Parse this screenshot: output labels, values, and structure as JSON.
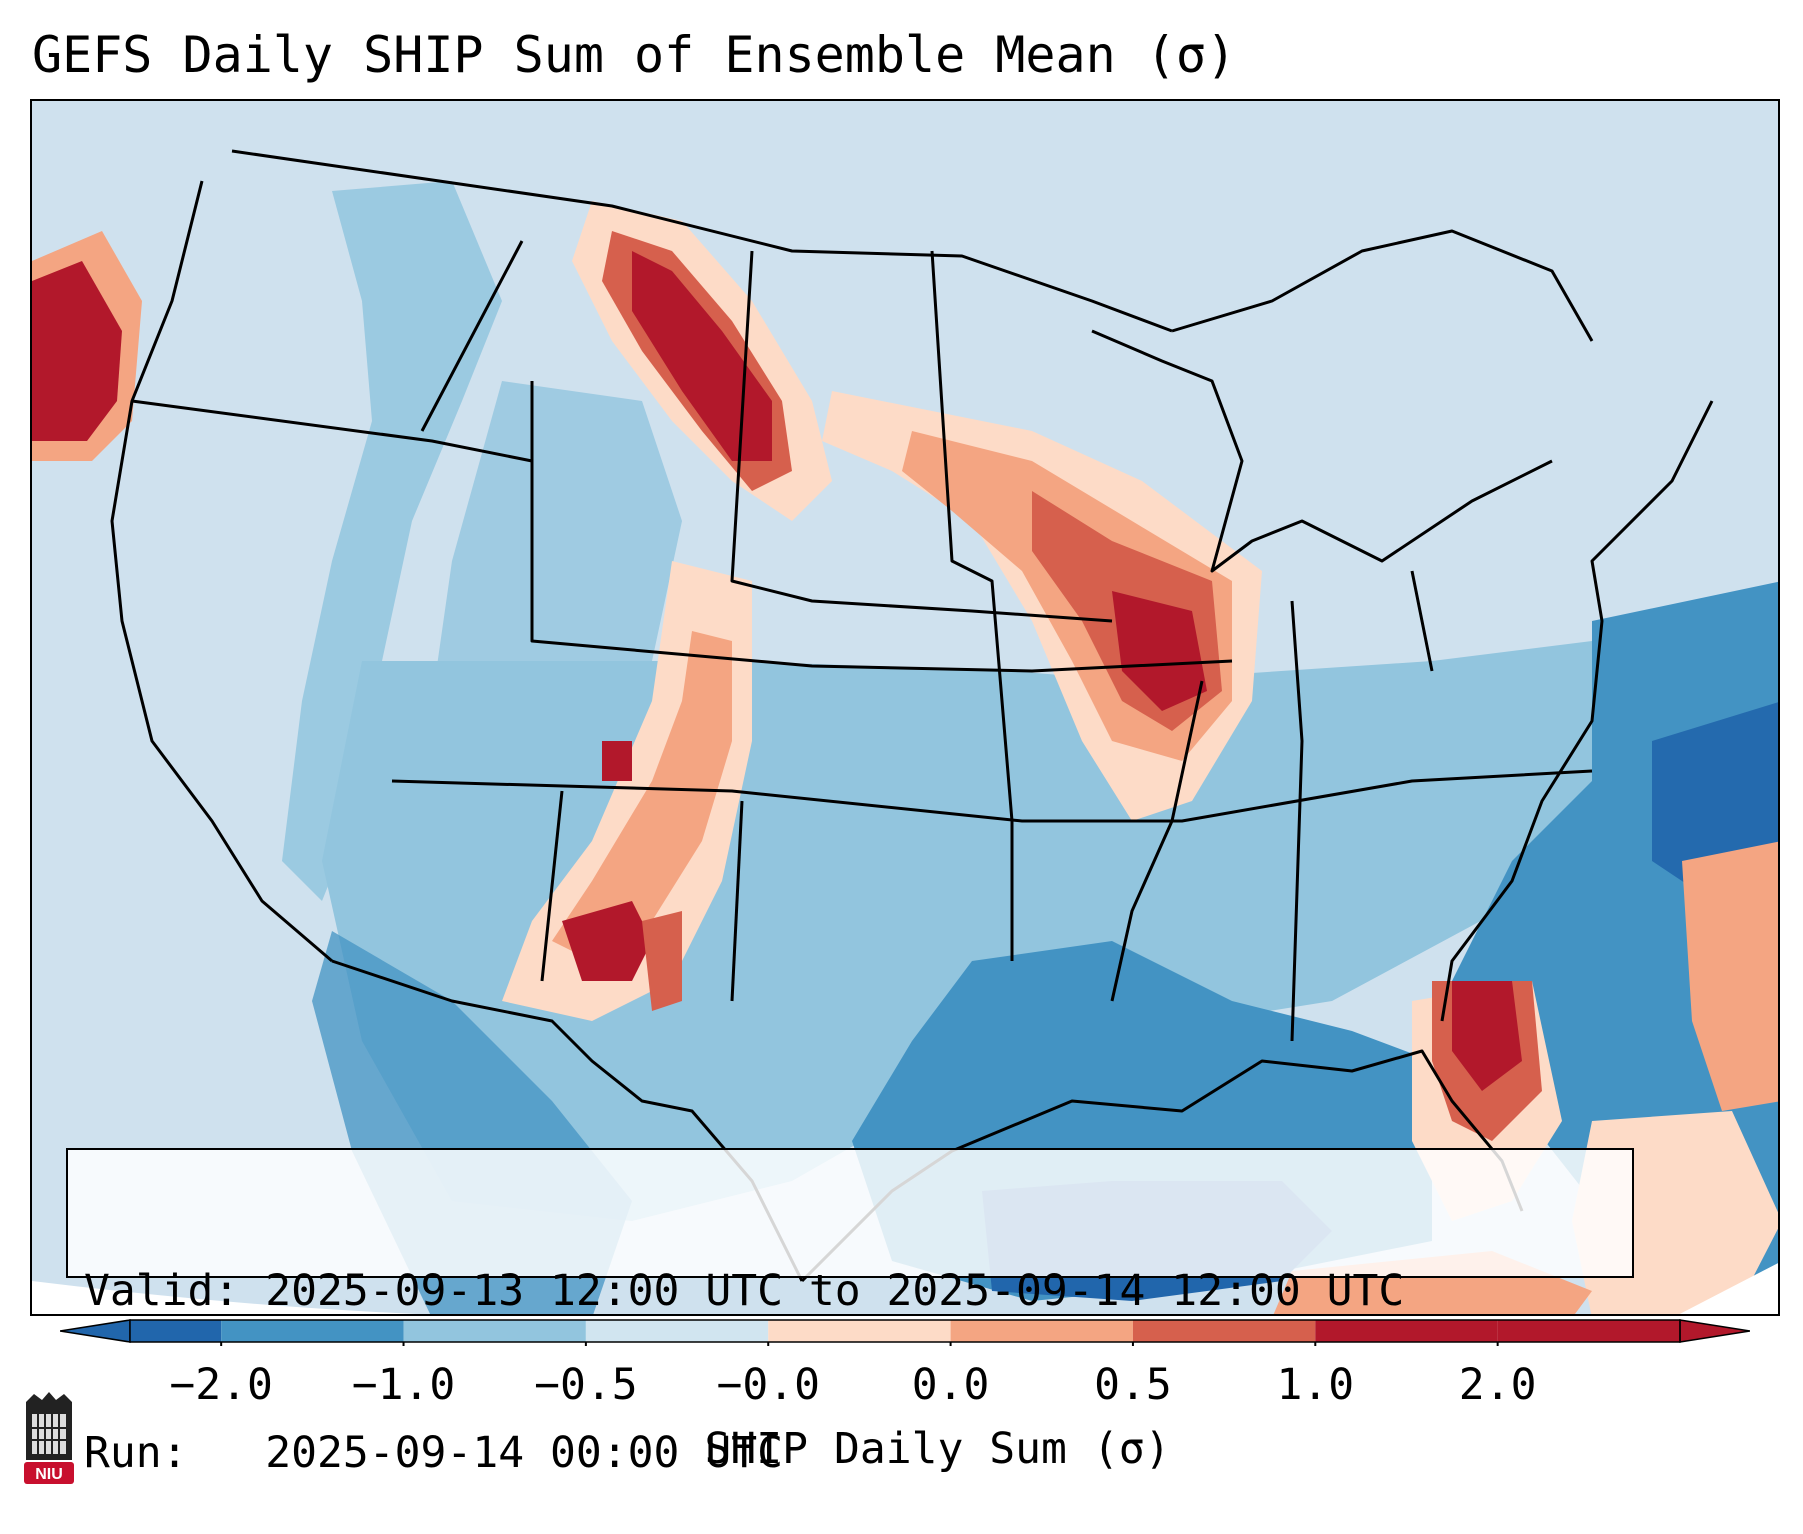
{
  "title": "GEFS Daily SHIP Sum of Ensemble Mean (σ)",
  "map": {
    "projection_region": "North America / CONUS",
    "anomaly_centers": [
      {
        "region": "Montana / North Dakota",
        "sign": "positive",
        "level": 2.0
      },
      {
        "region": "Upper Midwest to Illinois / Indiana",
        "sign": "positive",
        "level": 2.0
      },
      {
        "region": "New Mexico / West Texas",
        "sign": "positive",
        "level": 2.0
      },
      {
        "region": "Pacific offshore (northwest)",
        "sign": "positive",
        "level": 2.0
      },
      {
        "region": "Florida / Atlantic offshore",
        "sign": "positive",
        "level": 2.0
      },
      {
        "region": "Gulf of Mexico",
        "sign": "negative",
        "level": -2.0
      },
      {
        "region": "Western Atlantic",
        "sign": "negative",
        "level": -1.0
      }
    ]
  },
  "info": {
    "valid_line": "Valid: 2025-09-13 12:00 UTC to 2025-09-14 12:00 UTC",
    "run_line": "Run:   2025-09-14 00:00 UTC"
  },
  "colorbar": {
    "label": "SHIP Daily Sum (σ)",
    "ticks": [
      "−2.0",
      "−1.0",
      "−0.5",
      "−0.0",
      "0.0",
      "0.5",
      "1.0",
      "2.0"
    ],
    "bins": [
      {
        "color": "#2166ac"
      },
      {
        "color": "#4393c3"
      },
      {
        "color": "#92c5de"
      },
      {
        "color": "#d1e5f0"
      },
      {
        "color": "#fddbc7"
      },
      {
        "color": "#f4a582"
      },
      {
        "color": "#d6604d"
      },
      {
        "color": "#b2182b"
      }
    ]
  },
  "logo": {
    "text": "NIU"
  }
}
